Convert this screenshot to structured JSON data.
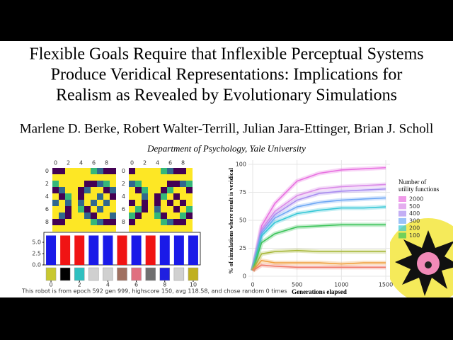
{
  "title_lines": [
    "Flexible Goals Require that Inflexible Perceptual Systems",
    "Produce Veridical Representations: Implications for",
    "Realism as Revealed by Evolutionary Simulations"
  ],
  "authors": "Marlene D. Berke, Robert Walter-Terrill, Julian Jara-Ettinger, Brian J. Scholl",
  "affiliation": "Department of Psychology, Yale University",
  "left_figure": {
    "grid_ticks": [
      0,
      2,
      4,
      6,
      8
    ],
    "bar_chart": {
      "type": "bar",
      "values": [
        6.5,
        6.5,
        6.5,
        6.5,
        6.5,
        6.5,
        6.5,
        6.5,
        6.5,
        6.5,
        6.5
      ],
      "colors": [
        "#1a1ae8",
        "#f01414",
        "#f01414",
        "#1a1ae8",
        "#1a1ae8",
        "#f01414",
        "#1a1ae8",
        "#f01414",
        "#1a1ae8",
        "#1a1ae8",
        "#1a1ae8"
      ],
      "ylim": [
        0,
        7.2
      ],
      "yticks": [
        {
          "value": 0,
          "label": "0.0"
        },
        {
          "value": 2.5,
          "label": "2.5"
        },
        {
          "value": 5,
          "label": "5.0"
        }
      ],
      "xlim": [
        -0.5,
        10.5
      ],
      "xticks": [
        0,
        2,
        4,
        6,
        8,
        10
      ]
    },
    "strip_colors": [
      "#c8c830",
      "#000000",
      "#30c0c0",
      "#d0d0d0",
      "#d0d0d0",
      "#a07060",
      "#e07080",
      "#707070",
      "#2020e0",
      "#d0d0d0",
      "#c0b020"
    ],
    "caption": "This robot is from epoch 592 gen 999, highscore 150, avg 118.58, and chose random 0 times"
  },
  "chart_data": {
    "type": "line",
    "y_label": "% of simulations where result is veridical",
    "x_label": "Generations elapsed",
    "x": [
      0,
      100,
      250,
      500,
      750,
      1000,
      1250,
      1500
    ],
    "xlim": [
      0,
      1500
    ],
    "xticks": [
      0,
      500,
      1000,
      1500
    ],
    "ylim": [
      0,
      100
    ],
    "yticks": [
      0,
      25,
      50,
      75,
      100
    ],
    "legend_title": [
      "Number of",
      "utility functions"
    ],
    "series": [
      {
        "name": "2000",
        "color": "#e86fe0",
        "values": [
          5,
          45,
          65,
          85,
          92,
          95,
          96,
          97
        ]
      },
      {
        "name": "500",
        "color": "#d98ae8",
        "values": [
          5,
          42,
          58,
          72,
          78,
          80,
          81,
          82
        ]
      },
      {
        "name": "400",
        "color": "#a98cf0",
        "values": [
          5,
          40,
          55,
          68,
          74,
          76,
          77,
          78
        ]
      },
      {
        "name": "300",
        "color": "#6fa8f5",
        "values": [
          5,
          38,
          52,
          62,
          66,
          68,
          69,
          70
        ]
      },
      {
        "name": "200",
        "color": "#35c7d6",
        "values": [
          5,
          36,
          48,
          56,
          59,
          61,
          61,
          62
        ]
      },
      {
        "name": "100",
        "color": "#3cc45a",
        "values": [
          5,
          30,
          38,
          44,
          45,
          46,
          46,
          46
        ]
      },
      {
        "color": "#a8b83a",
        "values": [
          5,
          20,
          22,
          23,
          22,
          22,
          22,
          22
        ]
      },
      {
        "color": "#f0a040",
        "values": [
          5,
          14,
          12,
          12,
          12,
          11,
          12,
          12
        ]
      },
      {
        "color": "#f07a6a",
        "values": [
          5,
          10,
          9,
          8,
          8,
          8,
          8,
          8
        ]
      }
    ]
  }
}
